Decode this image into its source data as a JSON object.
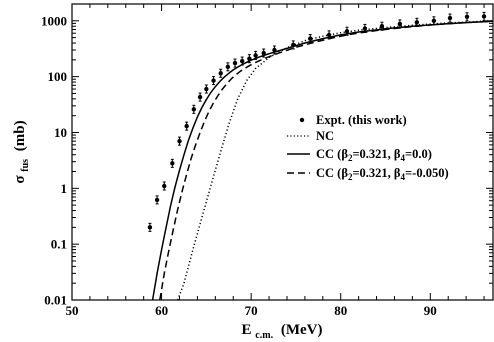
{
  "chart_data": {
    "type": "scatter",
    "title": "",
    "xlabel": {
      "main": "E",
      "sub": "c.m.",
      "unit": "(MeV)"
    },
    "ylabel": {
      "main": "σ",
      "sub": "fus",
      "unit": "(mb)"
    },
    "xlim": [
      50,
      97
    ],
    "ylim": [
      0.01,
      2000
    ],
    "yscale": "log",
    "grid": false,
    "legend_position": "center-right",
    "x_ticks": [
      50,
      60,
      70,
      80,
      90
    ],
    "x_tick_labels": [
      "50",
      "60",
      "70",
      "80",
      "90"
    ],
    "y_ticks": [
      0.01,
      0.1,
      1,
      10,
      100,
      1000
    ],
    "y_tick_labels": [
      "0.01",
      "0.1",
      "1",
      "10",
      "100",
      "1000"
    ],
    "series": [
      {
        "name": "Expt. (this work)",
        "style": "points",
        "x": [
          58.7,
          59.5,
          60.3,
          61.2,
          62.0,
          62.8,
          63.6,
          64.3,
          65.0,
          65.8,
          66.6,
          67.4,
          68.2,
          69.0,
          69.8,
          70.5,
          71.4,
          72.6,
          74.7,
          76.6,
          78.7,
          80.7,
          82.7,
          84.6,
          86.6,
          88.5,
          90.4,
          92.2,
          94.1,
          96.0
        ],
        "y": [
          0.2,
          0.62,
          1.1,
          2.8,
          7.0,
          13,
          26,
          43,
          60,
          85,
          115,
          150,
          175,
          190,
          210,
          240,
          265,
          300,
          370,
          480,
          560,
          650,
          730,
          800,
          880,
          940,
          1000,
          1120,
          1180,
          1200
        ],
        "y_err_frac": 0.18
      },
      {
        "name": "NC",
        "style": "dotted",
        "x": [
          61.8,
          62.5,
          63.5,
          64.5,
          65.5,
          66.5,
          67.5,
          68.5,
          69.5,
          70.5,
          72,
          74,
          76,
          78,
          80,
          82,
          85,
          88,
          91,
          94,
          97
        ],
        "y": [
          0.01,
          0.02,
          0.08,
          0.3,
          1.1,
          4,
          14,
          40,
          85,
          140,
          220,
          330,
          440,
          530,
          610,
          680,
          760,
          830,
          900,
          950,
          1000
        ]
      },
      {
        "name": "CC (β2=0.321, β4=0.0)",
        "label_parts": {
          "lead": "CC (β",
          "s1": "2",
          "mid": "=0.321, β",
          "s2": "4",
          "tail": "=0.0)"
        },
        "style": "solid",
        "x": [
          59.0,
          59.5,
          60.0,
          60.5,
          61.0,
          61.5,
          62.0,
          62.5,
          63.0,
          63.5,
          64.0,
          64.5,
          65.0,
          65.5,
          66.0,
          66.5,
          67.0,
          67.5,
          68.0,
          68.5,
          69.0,
          69.5,
          70.0,
          71.0,
          72.0,
          74.0,
          76.0,
          78.0,
          80.0,
          82.0,
          85.0,
          88.0,
          91.0,
          94.0,
          97.0
        ],
        "y": [
          0.01,
          0.03,
          0.08,
          0.2,
          0.48,
          1.05,
          2.1,
          4.0,
          7.2,
          12,
          19,
          28,
          39,
          52,
          66,
          82,
          98,
          115,
          132,
          148,
          165,
          181,
          197,
          228,
          258,
          320,
          400,
          480,
          560,
          630,
          720,
          800,
          870,
          930,
          980
        ]
      },
      {
        "name": "CC (β2=0.321, β4=-0.050)",
        "label_parts": {
          "lead": "CC (β",
          "s1": "2",
          "mid": "=0.321, β",
          "s2": "4",
          "tail": "=-0.050)"
        },
        "style": "dashed",
        "x": [
          59.8,
          60.3,
          60.8,
          61.3,
          61.8,
          62.3,
          62.8,
          63.3,
          63.8,
          64.3,
          64.8,
          65.3,
          65.8,
          66.3,
          66.8,
          67.3,
          67.8,
          68.3,
          68.8,
          69.3,
          69.8,
          70.5,
          71.5,
          73.0,
          75.0,
          77.0,
          79.0,
          81.0,
          84.0,
          87.0,
          90.0,
          93.0,
          97.0
        ],
        "y": [
          0.01,
          0.03,
          0.075,
          0.18,
          0.42,
          0.9,
          1.8,
          3.4,
          6.0,
          10,
          16,
          24,
          34,
          46,
          60,
          75,
          92,
          108,
          125,
          141,
          157,
          180,
          212,
          262,
          335,
          410,
          490,
          570,
          670,
          760,
          840,
          910,
          985
        ]
      }
    ]
  }
}
